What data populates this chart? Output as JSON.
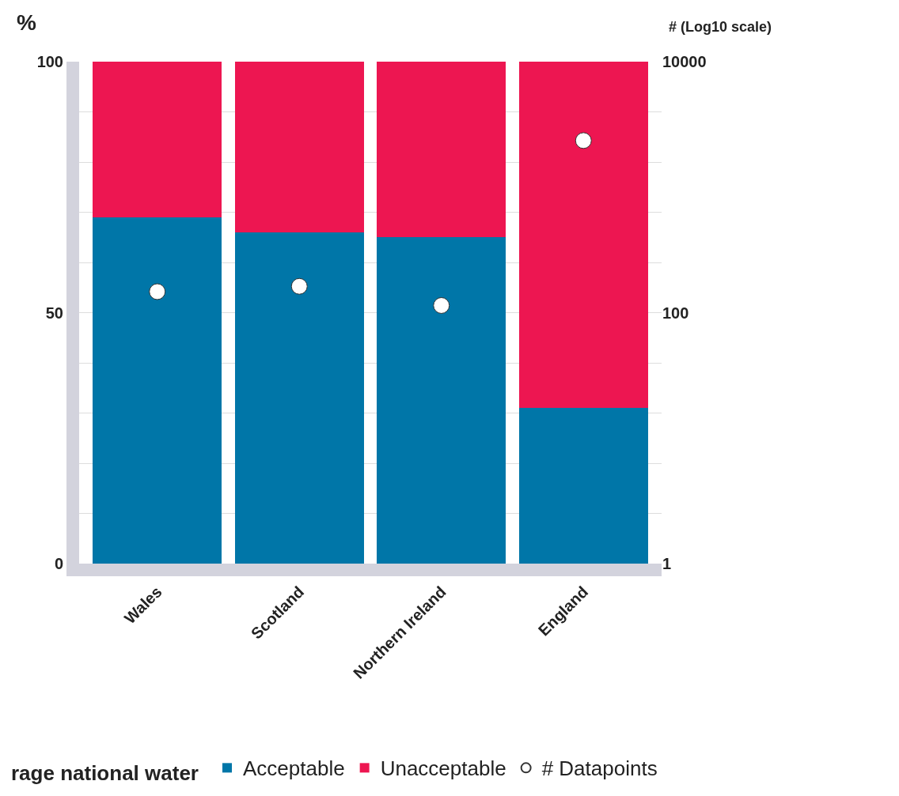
{
  "chart_data": {
    "type": "bar",
    "stacked": true,
    "categories": [
      "Wales",
      "Scotland",
      "Northern Ireland",
      "England"
    ],
    "series": [
      {
        "name": "Acceptable",
        "color": "#0076a8",
        "values": [
          69,
          66,
          65,
          31
        ]
      },
      {
        "name": "Unacceptable",
        "color": "#ed1651",
        "values": [
          31,
          34,
          35,
          69
        ]
      },
      {
        "name": "# Datapoints",
        "type": "scatter",
        "axis": "y2",
        "color": "#ffffff",
        "values": [
          147,
          162,
          114,
          2350
        ]
      }
    ],
    "ylabel": "%",
    "y2label": "# (Log10 scale)",
    "ylim": [
      0,
      100
    ],
    "yticks": [
      0,
      {
        "value": 10,
        "label": null
      },
      {
        "value": 20,
        "label": null
      },
      {
        "value": 30,
        "label": null
      },
      {
        "value": 40,
        "label": null
      },
      50,
      {
        "value": 60,
        "label": null
      },
      {
        "value": 70,
        "label": null
      },
      {
        "value": 80,
        "label": null
      },
      {
        "value": 90,
        "label": null
      },
      100
    ],
    "y2lim": [
      1,
      10000
    ],
    "y2ticks": [
      1,
      100,
      10000
    ],
    "log": "y2",
    "grid": "y",
    "legend": "bottom right",
    "marker": "circle",
    "annotations": [
      "rage national water"
    ]
  }
}
